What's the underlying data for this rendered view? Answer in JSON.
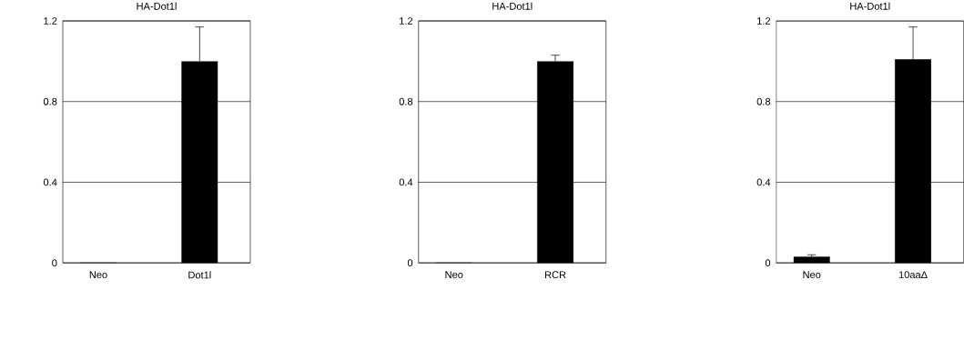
{
  "chart_data": [
    {
      "type": "bar",
      "title": "HA-Dot1l",
      "categories": [
        "Neo",
        "Dot1l"
      ],
      "values": [
        0,
        1.0
      ],
      "errors": [
        null,
        0.17
      ],
      "color": "#000000",
      "ylim": [
        0,
        1.2
      ],
      "yticks": [
        0,
        0.4,
        0.8,
        1.2
      ],
      "grid": "y"
    },
    {
      "type": "bar",
      "title": "HA-Dot1l",
      "categories": [
        "Neo",
        "RCR"
      ],
      "values": [
        0,
        1.0
      ],
      "errors": [
        null,
        0.03
      ],
      "color": "#000000",
      "ylim": [
        0,
        1.2
      ],
      "yticks": [
        0,
        0.4,
        0.8,
        1.2
      ],
      "grid": "y"
    },
    {
      "type": "bar",
      "title": "HA-Dot1l",
      "categories": [
        "Neo",
        "10aaΔ"
      ],
      "values": [
        0.03,
        1.01
      ],
      "errors": [
        0.01,
        0.16
      ],
      "color": "#000000",
      "ylim": [
        0,
        1.2
      ],
      "yticks": [
        0,
        0.4,
        0.8,
        1.2
      ],
      "grid": "y"
    }
  ]
}
